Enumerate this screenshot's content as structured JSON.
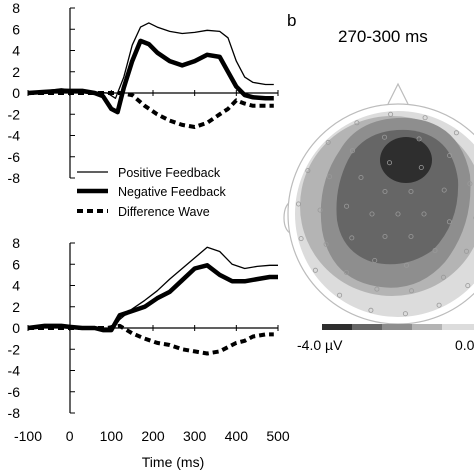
{
  "chart_data": [
    {
      "type": "line",
      "panel": "top-left",
      "x_ticks": [
        -100,
        0,
        100,
        200,
        300,
        400,
        500
      ],
      "y_ticks": [
        8,
        6,
        4,
        2,
        0,
        -2,
        -4,
        -6,
        -8
      ],
      "xlim": [
        -100,
        500
      ],
      "ylim": [
        -8,
        8
      ],
      "series": [
        {
          "name": "Positive Feedback",
          "style": "thin",
          "x": [
            -100,
            -60,
            -20,
            0,
            30,
            60,
            90,
            110,
            130,
            150,
            170,
            190,
            210,
            240,
            270,
            300,
            330,
            360,
            380,
            400,
            420,
            440,
            470,
            490
          ],
          "y": [
            0,
            0.2,
            0.4,
            0.3,
            0.3,
            0.1,
            0,
            -0.5,
            1.5,
            4.5,
            6.2,
            6.6,
            6.2,
            5.8,
            5.6,
            5.7,
            5.9,
            5.8,
            5.2,
            3,
            1.5,
            1,
            0.8,
            0.8
          ]
        },
        {
          "name": "Negative Feedback",
          "style": "thick",
          "x": [
            -100,
            -60,
            -20,
            0,
            30,
            60,
            80,
            100,
            115,
            130,
            150,
            170,
            190,
            210,
            240,
            270,
            300,
            330,
            360,
            380,
            400,
            420,
            440,
            470,
            490
          ],
          "y": [
            0,
            0.1,
            0.2,
            0.2,
            0.2,
            0,
            -0.3,
            -1.5,
            -1.8,
            0.5,
            3,
            4.9,
            4.6,
            3.8,
            3,
            2.6,
            3,
            3.6,
            3.4,
            2,
            0.6,
            -0.2,
            -0.4,
            -0.5,
            -0.5
          ]
        },
        {
          "name": "Difference Wave",
          "style": "dashed",
          "x": [
            -100,
            -60,
            -20,
            0,
            30,
            60,
            90,
            120,
            150,
            180,
            210,
            240,
            270,
            300,
            330,
            360,
            380,
            400,
            420,
            440,
            470,
            490
          ],
          "y": [
            0,
            0,
            0,
            0,
            0,
            0,
            0,
            0,
            -0.2,
            -1.2,
            -2,
            -2.6,
            -3,
            -3.2,
            -2.8,
            -2,
            -1.5,
            -0.7,
            -1,
            -1.2,
            -1.2,
            -1.2
          ]
        }
      ]
    },
    {
      "type": "line",
      "panel": "bottom-left",
      "x_ticks": [
        -100,
        0,
        100,
        200,
        300,
        400,
        500
      ],
      "y_ticks": [
        8,
        6,
        4,
        2,
        0,
        -2,
        -4,
        -6,
        -8
      ],
      "xlim": [
        -100,
        500
      ],
      "ylim": [
        -8,
        8
      ],
      "xlabel": "Time (ms)",
      "series": [
        {
          "name": "Positive Feedback",
          "style": "thin",
          "x": [
            -100,
            -60,
            -20,
            0,
            30,
            60,
            80,
            100,
            120,
            150,
            180,
            210,
            240,
            270,
            300,
            330,
            360,
            390,
            420,
            450,
            480,
            500
          ],
          "y": [
            0,
            0.1,
            0.1,
            0.1,
            0.1,
            0.1,
            0,
            -0.3,
            0.8,
            1.8,
            2.6,
            3.5,
            4.6,
            5.6,
            6.6,
            7.6,
            7.2,
            6,
            5.6,
            5.8,
            5.9,
            5.9
          ]
        },
        {
          "name": "Negative Feedback",
          "style": "thick",
          "x": [
            -100,
            -60,
            -20,
            0,
            30,
            60,
            80,
            100,
            120,
            150,
            180,
            210,
            240,
            270,
            300,
            330,
            360,
            390,
            420,
            450,
            480,
            500
          ],
          "y": [
            0,
            0.2,
            0.2,
            0.1,
            0,
            0,
            -0.2,
            -0.2,
            1.2,
            1.6,
            2,
            2.8,
            3.4,
            4.5,
            5.6,
            5.9,
            5,
            4.4,
            4.4,
            4.6,
            4.8,
            4.8
          ]
        },
        {
          "name": "Difference Wave",
          "style": "dashed",
          "x": [
            -100,
            -60,
            -20,
            0,
            30,
            60,
            90,
            120,
            150,
            180,
            210,
            240,
            270,
            300,
            330,
            360,
            380,
            400,
            420,
            440,
            470,
            490
          ],
          "y": [
            0,
            0,
            0,
            0,
            0,
            0,
            0,
            0.2,
            -0.5,
            -1,
            -1.4,
            -1.6,
            -2,
            -2.2,
            -2.4,
            -2.2,
            -1.8,
            -1.4,
            -1.2,
            -0.8,
            -0.6,
            -0.6
          ]
        }
      ]
    }
  ],
  "legend": [
    "Positive Feedback",
    "Negative Feedback",
    "Difference Wave"
  ],
  "topomap": {
    "panel_label": "b",
    "title": "270-300 ms",
    "scale_min_label": "-4.0 µV",
    "scale_max_label": "0.0",
    "scale_colors": [
      "#2e2e2e",
      "#666666",
      "#8e8e8e",
      "#b4b4b4",
      "#dcdcdc"
    ]
  }
}
